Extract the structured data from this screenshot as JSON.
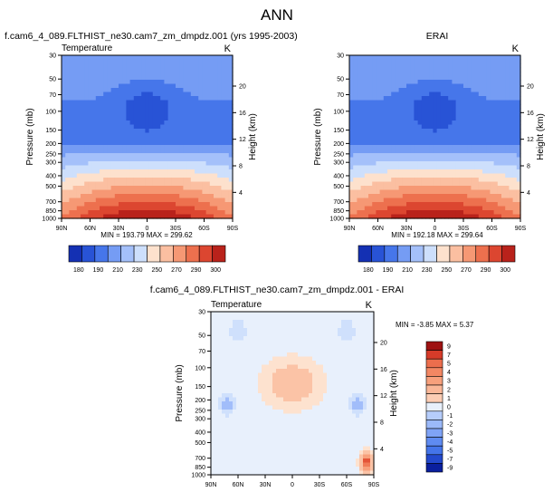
{
  "page_title": "ANN",
  "colors": {
    "cold_ramp": [
      "#0a1f9e",
      "#1d3ec4",
      "#2f5fe0",
      "#4f7fee",
      "#7fa3f6",
      "#a9c4fb",
      "#cfe0fc"
    ],
    "warm_ramp": [
      "#fde2cf",
      "#fbc3a6",
      "#f7a07c",
      "#f07b57",
      "#e45438",
      "#cf2f22",
      "#9e1212"
    ],
    "diff_neutral": "#e8f0fc"
  },
  "chart_data": [
    {
      "type": "heatmap",
      "title": "f.cam6_4_089.FLTHIST_ne30.cam7_zm_dmpdz.001 (yrs 1995-2003)",
      "var_label": "Temperature",
      "units_label": "K",
      "xlabel": "",
      "ylabel": "Pressure (mb)",
      "y2label": "Height (km)",
      "x_ticks": [
        "90N",
        "60N",
        "30N",
        "0",
        "30S",
        "60S",
        "90S"
      ],
      "x_range": [
        90,
        -90
      ],
      "y_ticks": [
        "30",
        "50",
        "70",
        "100",
        "150",
        "200",
        "250",
        "300",
        "400",
        "500",
        "700",
        "850",
        "1000"
      ],
      "y_range": [
        30,
        1000
      ],
      "y_log": true,
      "y2_ticks": [
        "4",
        "8",
        "12",
        "16",
        "20"
      ],
      "min_max_text": "MIN = 193.79   MAX = 299.62",
      "min": 193.79,
      "max": 299.62,
      "colorbar_labels": [
        "180",
        "190",
        "210",
        "230",
        "250",
        "270",
        "290",
        "300"
      ],
      "colorbar_levels": [
        180,
        190,
        200,
        210,
        220,
        230,
        240,
        250,
        260,
        270,
        280,
        290,
        300
      ],
      "colorbar_orientation": "horizontal"
    },
    {
      "type": "heatmap",
      "title": "ERAI",
      "var_label": "",
      "units_label": "K",
      "xlabel": "",
      "ylabel": "Pressure (mb)",
      "y2label": "Height (km)",
      "x_ticks": [
        "90N",
        "60N",
        "30N",
        "0",
        "30S",
        "60S",
        "90S"
      ],
      "x_range": [
        90,
        -90
      ],
      "y_ticks": [
        "30",
        "50",
        "70",
        "100",
        "150",
        "200",
        "250",
        "300",
        "400",
        "500",
        "700",
        "850",
        "1000"
      ],
      "y_range": [
        30,
        1000
      ],
      "y_log": true,
      "y2_ticks": [
        "4",
        "8",
        "12",
        "16",
        "20"
      ],
      "min_max_text": "MIN = 192.18   MAX = 299.64",
      "min": 192.18,
      "max": 299.64,
      "colorbar_labels": [
        "180",
        "190",
        "210",
        "230",
        "250",
        "270",
        "290",
        "300"
      ],
      "colorbar_levels": [
        180,
        190,
        200,
        210,
        220,
        230,
        240,
        250,
        260,
        270,
        280,
        290,
        300
      ],
      "colorbar_orientation": "horizontal"
    },
    {
      "type": "heatmap",
      "title": "f.cam6_4_089.FLTHIST_ne30.cam7_zm_dmpdz.001 - ERAI",
      "var_label": "Temperature",
      "units_label": "K",
      "xlabel": "",
      "ylabel": "Pressure (mb)",
      "y2label": "Height (km)",
      "x_ticks": [
        "90N",
        "60N",
        "30N",
        "0",
        "30S",
        "60S",
        "90S"
      ],
      "x_range": [
        90,
        -90
      ],
      "y_ticks": [
        "30",
        "50",
        "70",
        "100",
        "150",
        "200",
        "250",
        "300",
        "400",
        "500",
        "700",
        "850",
        "1000"
      ],
      "y_range": [
        30,
        1000
      ],
      "y_log": true,
      "y2_ticks": [
        "4",
        "8",
        "12",
        "16",
        "20"
      ],
      "min_max_text": "MIN = -3.85   MAX =  5.37",
      "min": -3.85,
      "max": 5.37,
      "colorbar_labels": [
        "9",
        "7",
        "5",
        "4",
        "3",
        "2",
        "1",
        "0",
        "-1",
        "-2",
        "-3",
        "-4",
        "-5",
        "-7",
        "-9"
      ],
      "colorbar_levels": [
        -9,
        -7,
        -5,
        -4,
        -3,
        -2,
        -1,
        0,
        1,
        2,
        3,
        4,
        5,
        7,
        9
      ],
      "colorbar_orientation": "vertical"
    }
  ]
}
